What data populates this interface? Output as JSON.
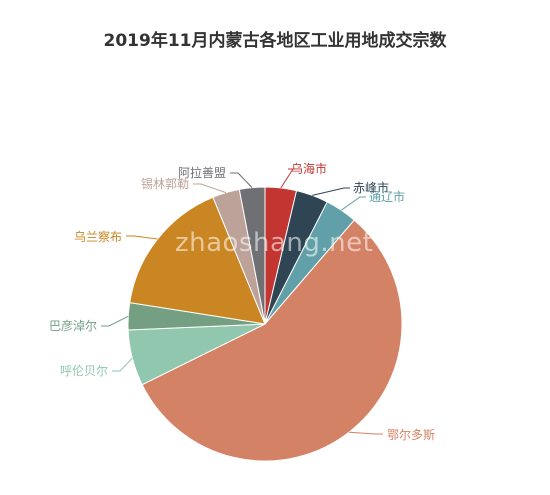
{
  "watermark": "zhaoshang.net",
  "chart_data": {
    "type": "pie",
    "title": "2019年11月内蒙古各地区工业用地成交宗数",
    "slices": [
      {
        "label": "乌海市",
        "value": 3.7,
        "color": "#c23531"
      },
      {
        "label": "赤峰市",
        "value": 3.8,
        "color": "#2f4554"
      },
      {
        "label": "通辽市",
        "value": 3.8,
        "color": "#61a0a8"
      },
      {
        "label": "鄂尔多斯",
        "value": 56.4,
        "color": "#d48265"
      },
      {
        "label": "呼伦贝尔",
        "value": 6.6,
        "color": "#91c7ae"
      },
      {
        "label": "巴彦淖尔",
        "value": 3.2,
        "color": "#749f83"
      },
      {
        "label": "乌兰察布",
        "value": 16.3,
        "color": "#ca8622"
      },
      {
        "label": "锡林郭勒",
        "value": 3.2,
        "color": "#bda29a"
      },
      {
        "label": "阿拉善盟",
        "value": 3.0,
        "color": "#6e7074"
      }
    ]
  }
}
